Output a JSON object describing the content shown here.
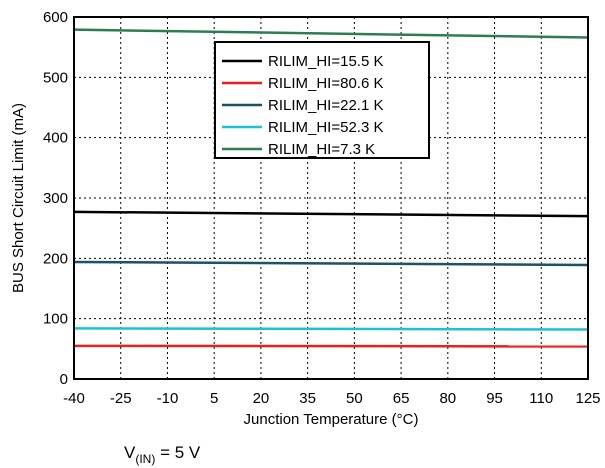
{
  "chart_data": {
    "type": "line",
    "title": "",
    "xlabel": "Junction Temperature (°C)",
    "ylabel": "BUS Short Circuit Limit (mA)",
    "xlim": [
      -40,
      125
    ],
    "ylim": [
      0,
      600
    ],
    "x_ticks": [
      "-40",
      "-25",
      "-10",
      "5",
      "20",
      "35",
      "50",
      "65",
      "80",
      "95",
      "110",
      "125"
    ],
    "y_ticks": [
      "0",
      "100",
      "200",
      "300",
      "400",
      "500",
      "600"
    ],
    "grid": true,
    "legend_position": "top-right",
    "x": [
      -40,
      125
    ],
    "series": [
      {
        "name": "RILIM_HI=15.5 K",
        "color": "#000000",
        "values": [
          277,
          270
        ]
      },
      {
        "name": "RILIM_HI=80.6 K",
        "color": "#e8201e",
        "values": [
          55,
          54
        ]
      },
      {
        "name": "RILIM_HI=22.1 K",
        "color": "#1a5266",
        "values": [
          194,
          189
        ]
      },
      {
        "name": "RILIM_HI=52.3 K",
        "color": "#1ec0d8",
        "values": [
          84,
          82
        ]
      },
      {
        "name": "RILIM_HI=7.3 K",
        "color": "#2e7d52",
        "values": [
          579,
          566
        ]
      }
    ]
  },
  "caption": {
    "v": "V",
    "sub": "(IN)",
    "rest": " = 5 V"
  }
}
